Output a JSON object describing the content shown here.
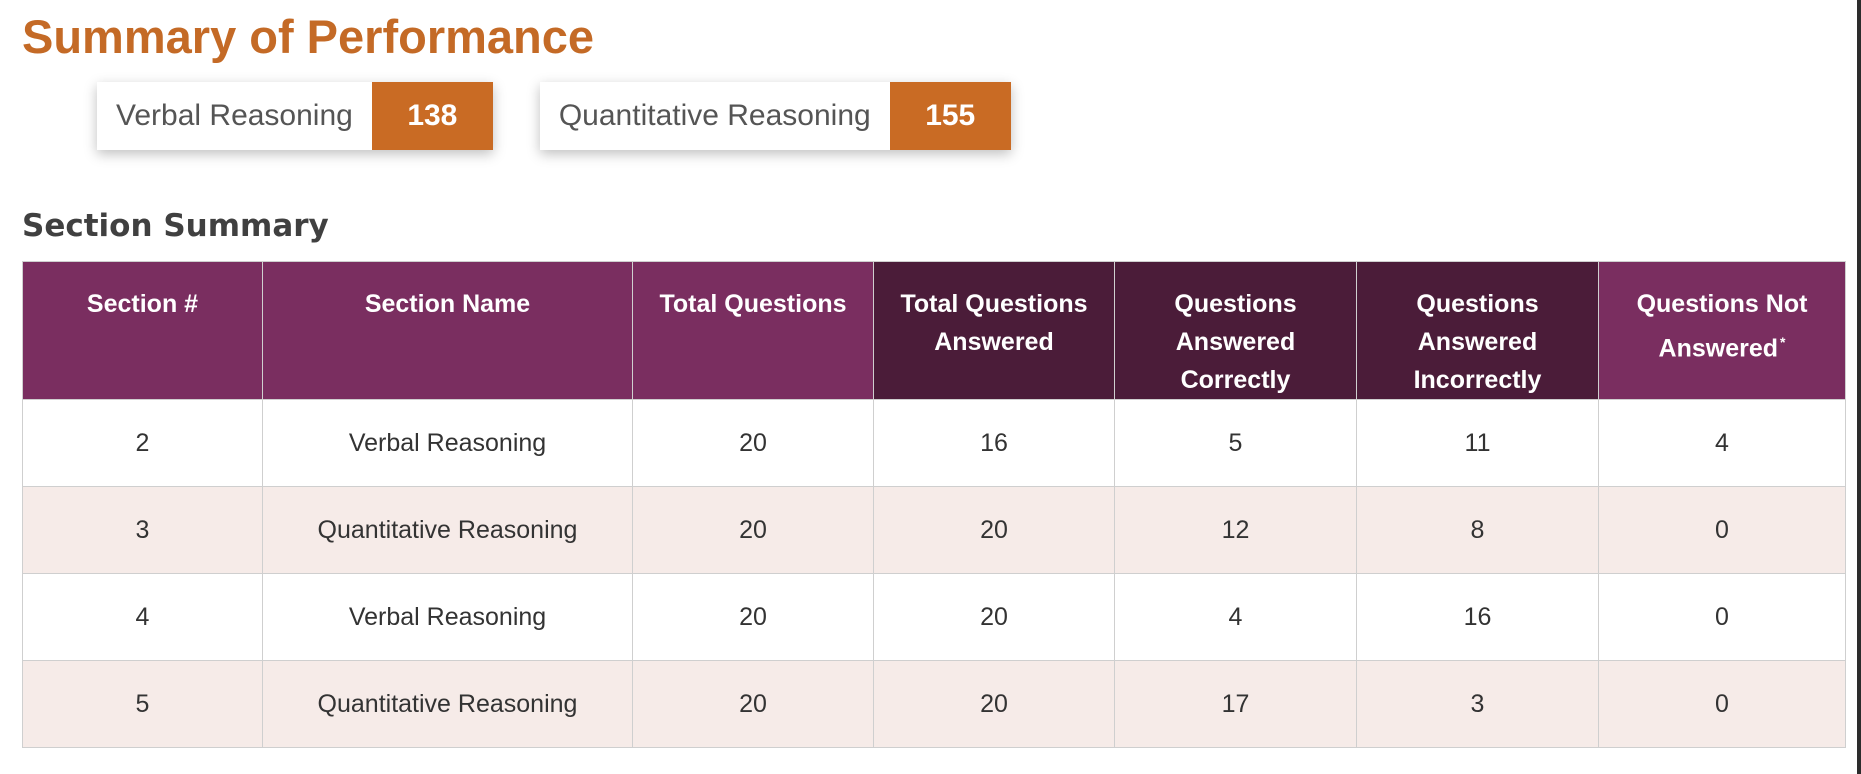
{
  "page_title": "Summary of Performance",
  "scores": [
    {
      "label": "Verbal Reasoning",
      "value": "138"
    },
    {
      "label": "Quantitative Reasoning",
      "value": "155"
    }
  ],
  "section_summary": {
    "title": "Section Summary",
    "columns": [
      {
        "label": "Section #"
      },
      {
        "label": "Section Name"
      },
      {
        "label": "Total Questions"
      },
      {
        "label": "Total Questions Answered"
      },
      {
        "label": "Questions Answered Correctly"
      },
      {
        "label": "Questions Answered Incorrectly"
      },
      {
        "label": "Questions Not Answered",
        "footnote": "*"
      }
    ],
    "rows": [
      [
        "2",
        "Verbal Reasoning",
        "20",
        "16",
        "5",
        "11",
        "4"
      ],
      [
        "3",
        "Quantitative Reasoning",
        "20",
        "20",
        "12",
        "8",
        "0"
      ],
      [
        "4",
        "Verbal Reasoning",
        "20",
        "20",
        "4",
        "16",
        "0"
      ],
      [
        "5",
        "Quantitative Reasoning",
        "20",
        "20",
        "17",
        "3",
        "0"
      ]
    ]
  },
  "colors": {
    "accent_orange": "#c96b24",
    "header_purple": "#7a2e60",
    "header_dark_purple": "#4b1c39",
    "alt_row": "#f6ebe8"
  }
}
